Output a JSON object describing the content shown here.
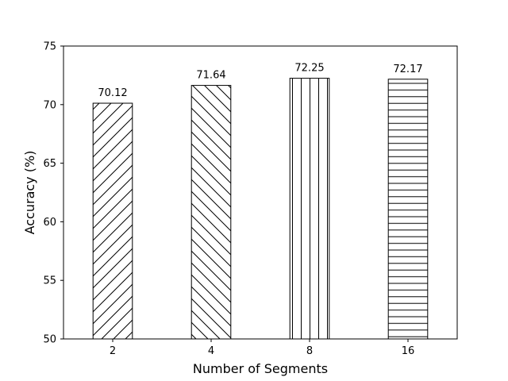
{
  "chart_data": {
    "type": "bar",
    "categories": [
      "2",
      "4",
      "8",
      "16"
    ],
    "values": [
      70.12,
      71.64,
      72.25,
      72.17
    ],
    "data_labels": [
      "70.12",
      "71.64",
      "72.25",
      "72.17"
    ],
    "hatches": [
      "/",
      "\\",
      "|",
      "-"
    ],
    "xlabel": "Number of Segments",
    "ylabel": "Accuracy (%)",
    "ylim": [
      50,
      75
    ],
    "yticks": [
      "50",
      "55",
      "60",
      "65",
      "70",
      "75"
    ],
    "grid": false,
    "bar_fill": "#ffffff",
    "bar_edge": "#000000"
  }
}
